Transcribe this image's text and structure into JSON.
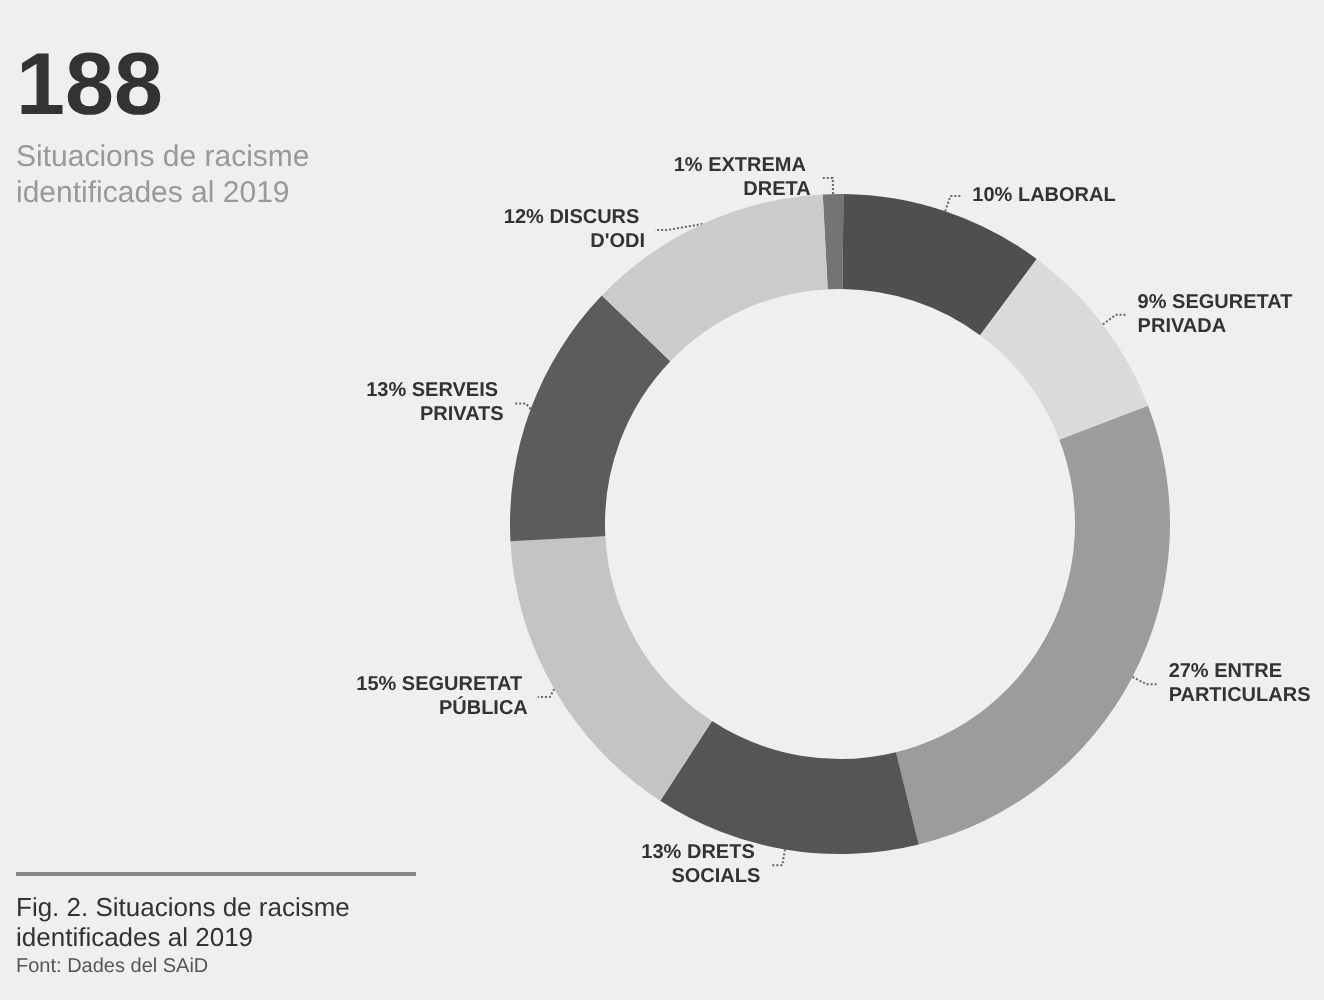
{
  "chart_data": {
    "type": "donut",
    "title": "188",
    "subtitle": "Situacions de racisme identificades al 2019",
    "categories": [
      "1% EXTREMA DRETA",
      "10% LABORAL",
      "9% SEGURETAT PRIVADA",
      "27% ENTRE PARTICULARS",
      "13% DRETS SOCIALS",
      "15% SEGURETAT PÚBLICA",
      "13% SERVEIS PRIVATS",
      "12% DISCURS D'ODI"
    ],
    "values": [
      1,
      10,
      9,
      27,
      13,
      15,
      13,
      12
    ],
    "colors": [
      "#747474",
      "#4f4f4f",
      "#dadada",
      "#9c9c9c",
      "#555555",
      "#c4c4c4",
      "#5c5c5c",
      "#cbcbcb"
    ],
    "annotations": [
      "Fig. 2. Situacions de racisme identificades al 2019",
      "Font: Dades del SAiD"
    ],
    "legend": false
  }
}
